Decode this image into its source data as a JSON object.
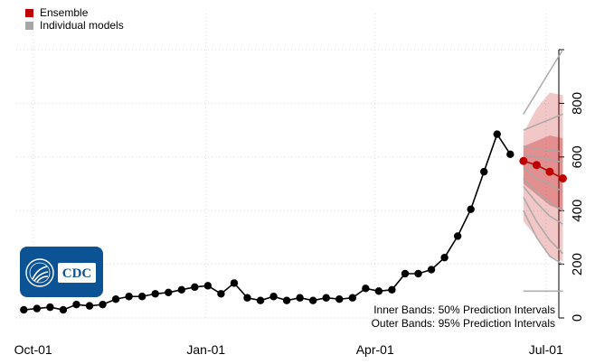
{
  "legend": {
    "items": [
      {
        "label": "Ensemble",
        "color": "#c00000"
      },
      {
        "label": "Individual models",
        "color": "#a6a6a6"
      }
    ]
  },
  "logo": {
    "text": "CDC",
    "color": "#0b5394"
  },
  "notes": {
    "inner": "Inner Bands: 50% Prediction Intervals",
    "outer": "Outer Bands: 95% Prediction Intervals"
  },
  "chart_data": {
    "type": "line",
    "xlim": [
      "2020-09-22",
      "2021-07-04"
    ],
    "ylim": [
      0,
      1000
    ],
    "x_ticks": [
      "Oct-01",
      "Jan-01",
      "Apr-01",
      "Jul-01"
    ],
    "x_tick_dates": [
      "2020-10-01",
      "2021-01-01",
      "2021-04-01",
      "2021-07-01"
    ],
    "y_ticks": [
      0,
      200,
      400,
      600,
      800
    ],
    "y_axis_side": "right",
    "grid": true,
    "legend_position": "top-left",
    "series": [
      {
        "name": "",
        "color": "#000000",
        "points": [
          [
            "2020-09-26",
            30
          ],
          [
            "2020-10-03",
            35
          ],
          [
            "2020-10-10",
            40
          ],
          [
            "2020-10-17",
            30
          ],
          [
            "2020-10-24",
            50
          ],
          [
            "2020-10-31",
            45
          ],
          [
            "2020-11-07",
            50
          ],
          [
            "2020-11-14",
            70
          ],
          [
            "2020-11-21",
            80
          ],
          [
            "2020-11-28",
            80
          ],
          [
            "2020-12-05",
            90
          ],
          [
            "2020-12-12",
            95
          ],
          [
            "2020-12-19",
            105
          ],
          [
            "2020-12-26",
            115
          ],
          [
            "2021-01-02",
            120
          ],
          [
            "2021-01-09",
            90
          ],
          [
            "2021-01-16",
            130
          ],
          [
            "2021-01-23",
            75
          ],
          [
            "2021-01-30",
            65
          ],
          [
            "2021-02-06",
            80
          ],
          [
            "2021-02-13",
            65
          ],
          [
            "2021-02-20",
            75
          ],
          [
            "2021-02-27",
            65
          ],
          [
            "2021-03-06",
            75
          ],
          [
            "2021-03-13",
            70
          ],
          [
            "2021-03-20",
            75
          ],
          [
            "2021-03-27",
            110
          ],
          [
            "2021-04-03",
            100
          ],
          [
            "2021-04-10",
            105
          ],
          [
            "2021-04-17",
            165
          ],
          [
            "2021-04-24",
            165
          ],
          [
            "2021-05-01",
            180
          ],
          [
            "2021-05-08",
            225
          ],
          [
            "2021-05-15",
            305
          ],
          [
            "2021-05-22",
            405
          ],
          [
            "2021-05-29",
            545
          ],
          [
            "2021-06-05",
            685
          ],
          [
            "2021-06-12",
            610
          ]
        ]
      },
      {
        "name": "Ensemble",
        "color": "#c00000",
        "points": [
          [
            "2021-06-19",
            585
          ],
          [
            "2021-06-26",
            570
          ],
          [
            "2021-07-03",
            545
          ],
          [
            "2021-07-10",
            520
          ]
        ]
      }
    ],
    "ensemble_intervals": {
      "x": [
        "2021-06-19",
        "2021-06-26",
        "2021-07-03",
        "2021-07-10"
      ],
      "pi95_low": [
        360,
        300,
        230,
        210
      ],
      "pi95_high": [
        690,
        780,
        840,
        830
      ],
      "pi50_low": [
        500,
        460,
        420,
        400
      ],
      "pi50_high": [
        640,
        660,
        680,
        670
      ]
    },
    "individual_models": [
      [
        760,
        840,
        920,
        1000
      ],
      [
        700,
        720,
        740,
        760
      ],
      [
        640,
        630,
        625,
        620
      ],
      [
        610,
        600,
        590,
        580
      ],
      [
        580,
        560,
        540,
        520
      ],
      [
        560,
        520,
        500,
        470
      ],
      [
        520,
        470,
        430,
        400
      ],
      [
        490,
        430,
        380,
        350
      ],
      [
        450,
        360,
        290,
        240
      ],
      [
        400,
        300,
        230,
        200
      ],
      [
        100,
        100,
        100,
        100
      ]
    ]
  }
}
